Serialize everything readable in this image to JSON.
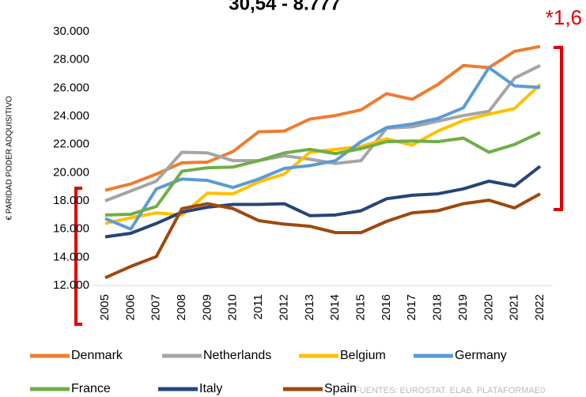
{
  "chart_data": {
    "type": "line",
    "title": "30,54 - 8.777",
    "annotation": "*1,6",
    "y_label": "€ PARIDAD PODER ADQUISITIVO",
    "source": "FUENTES: EUROSTAT. ELAB. PLATAFORMAE0",
    "categories": [
      "2005",
      "2006",
      "2007",
      "2008",
      "2009",
      "2010",
      "2011",
      "2012",
      "2013",
      "2014",
      "2015",
      "2016",
      "2017",
      "2018",
      "2019",
      "2020",
      "2021",
      "2022"
    ],
    "ylim": [
      12000,
      30000
    ],
    "yticks": [
      {
        "value": 12000,
        "label": "12.000"
      },
      {
        "value": 14000,
        "label": "14.000"
      },
      {
        "value": 16000,
        "label": "16.000"
      },
      {
        "value": 18000,
        "label": "18.000"
      },
      {
        "value": 20000,
        "label": "20.000"
      },
      {
        "value": 22000,
        "label": "22.000"
      },
      {
        "value": 24000,
        "label": "24.000"
      },
      {
        "value": 26000,
        "label": "26.000"
      },
      {
        "value": 28000,
        "label": "28.000"
      },
      {
        "value": 30000,
        "label": "30.000"
      }
    ],
    "grid": false,
    "series": [
      {
        "name": "Denmark",
        "color": "#ED7D31",
        "values": [
          18750,
          19200,
          19900,
          20700,
          20750,
          21500,
          22900,
          22950,
          23800,
          24050,
          24450,
          25600,
          25200,
          26250,
          27600,
          27450,
          28600,
          28950
        ]
      },
      {
        "name": "Netherlands",
        "color": "#A5A5A5",
        "values": [
          18000,
          18700,
          19400,
          21450,
          21400,
          20850,
          20850,
          21200,
          20950,
          20650,
          20850,
          23150,
          23250,
          23650,
          24050,
          24350,
          26700,
          27600
        ]
      },
      {
        "name": "Belgium",
        "color": "#FFC000",
        "values": [
          16400,
          16800,
          17150,
          17000,
          18550,
          18500,
          19350,
          19900,
          21450,
          21650,
          21850,
          22400,
          21950,
          22950,
          23700,
          24150,
          24550,
          26250
        ]
      },
      {
        "name": "Germany",
        "color": "#5B9BD5",
        "values": [
          16750,
          16000,
          18850,
          19550,
          19450,
          18950,
          19550,
          20300,
          20500,
          20850,
          22200,
          23200,
          23450,
          23850,
          24600,
          27450,
          26150,
          26050
        ]
      },
      {
        "name": "France",
        "color": "#70AD47",
        "values": [
          17000,
          17050,
          17600,
          20100,
          20350,
          20400,
          20850,
          21400,
          21650,
          21350,
          21700,
          22200,
          22250,
          22200,
          22450,
          21450,
          22000,
          22850
        ]
      },
      {
        "name": "Italy",
        "color": "#264478",
        "values": [
          15450,
          15700,
          16400,
          17200,
          17550,
          17750,
          17750,
          17800,
          16950,
          17000,
          17300,
          18150,
          18400,
          18500,
          18850,
          19400,
          19050,
          20450
        ]
      },
      {
        "name": "Spain",
        "color": "#9E480E",
        "values": [
          12550,
          13350,
          14050,
          17450,
          17800,
          17450,
          16600,
          16350,
          16200,
          15750,
          15750,
          16550,
          17150,
          17300,
          17800,
          18050,
          17500,
          18500
        ]
      }
    ]
  }
}
